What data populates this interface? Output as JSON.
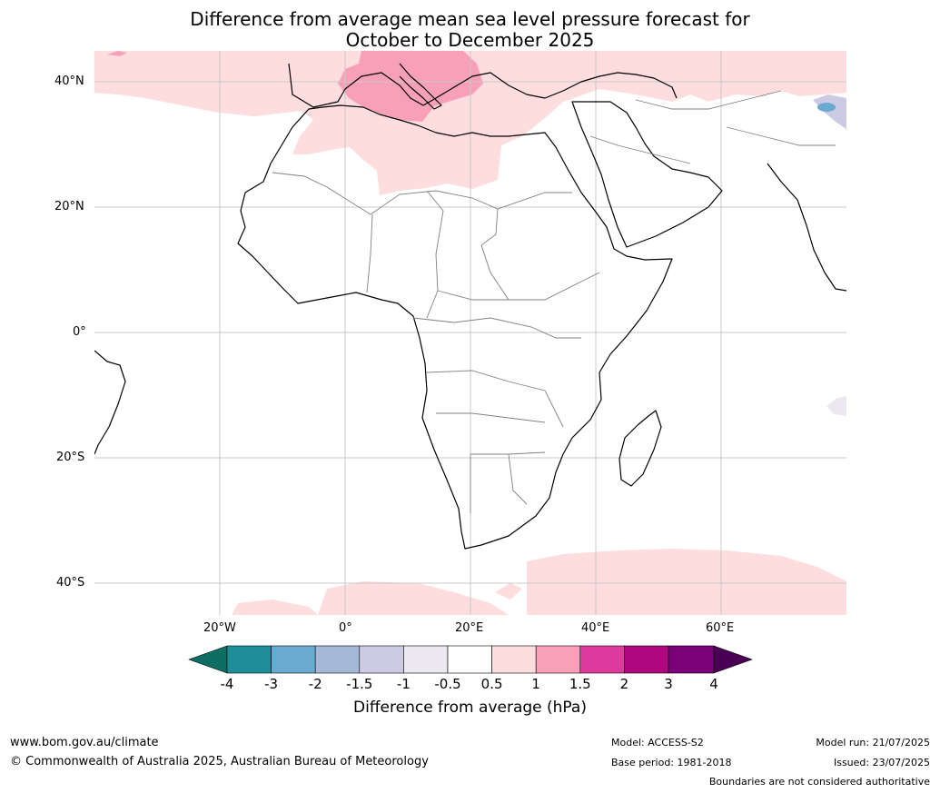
{
  "title": {
    "line1": "Difference from average mean sea level pressure forecast for",
    "line2": "October to December 2025"
  },
  "axes": {
    "lat_labels": [
      "40°N",
      "20°N",
      "0°",
      "20°S",
      "40°S"
    ],
    "lon_labels": [
      "20°W",
      "0°",
      "20°E",
      "40°E",
      "60°E"
    ]
  },
  "colorbar": {
    "ticks": [
      "-4",
      "-3",
      "-2",
      "-1.5",
      "-1",
      "-0.5",
      "0.5",
      "1",
      "1.5",
      "2",
      "3",
      "4"
    ],
    "colors": [
      "#0f6e63",
      "#1f8e9a",
      "#6aa9d0",
      "#a6b8d8",
      "#cccbe3",
      "#ebe9ef",
      "#ffffff",
      "#fddddd",
      "#f8a0b8",
      "#dc3b9d",
      "#ad087e",
      "#7a0177",
      "#4a0052"
    ],
    "title": "Difference from average (hPa)"
  },
  "footer": {
    "left1": "www.bom.gov.au/climate",
    "left2": "© Commonwealth of Australia 2025, Australian Bureau of Meteorology",
    "model": "Model: ACCESS-S2",
    "base": "Base period: 1981-2018",
    "run": "Model run: 21/07/2025",
    "issued": "Issued: 23/07/2025",
    "note": "Boundaries are not considered authoritative"
  }
}
